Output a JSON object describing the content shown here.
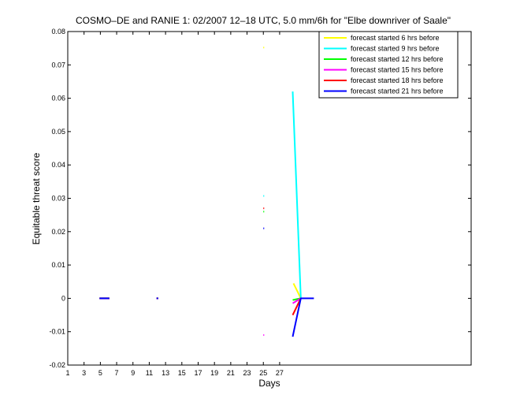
{
  "chart_data": {
    "type": "line",
    "title": "COSMO–DE and RANIE 1: 02/2007 12–18 UTC, 5.0 mm/6h for \"Elbe downriver of Saale\"",
    "xlabel": "Days",
    "ylabel": "Equitable threat score",
    "xlim": [
      1,
      50.5
    ],
    "ylim": [
      -0.02,
      0.08
    ],
    "x_ticks": [
      1,
      3,
      5,
      7,
      9,
      11,
      13,
      15,
      17,
      19,
      21,
      23,
      25,
      27
    ],
    "x_tick_labels": [
      "1",
      "3",
      "5",
      "7",
      "9",
      "11",
      "13",
      "15",
      "17",
      "19",
      "21",
      "23",
      "25",
      "27"
    ],
    "y_ticks": [
      -0.02,
      -0.01,
      0,
      0.01,
      0.02,
      0.03,
      0.04,
      0.05,
      0.06,
      0.07,
      0.08
    ],
    "y_tick_labels": [
      "-0.02",
      "-0.01",
      "0",
      "0.01",
      "0.02",
      "0.03",
      "0.04",
      "0.05",
      "0.06",
      "0.07",
      "0.08"
    ],
    "grid": false,
    "legend_position": "top-right",
    "series": [
      {
        "name": "forecast started 6 hrs before",
        "color": "#ffff00",
        "segments": [
          [
            [
              4.9,
              0
            ],
            [
              6.1,
              0
            ]
          ],
          [
            [
              11.9,
              0
            ],
            [
              12.1,
              0
            ]
          ],
          [
            [
              25,
              0.0752
            ],
            [
              25.1,
              0.0752
            ]
          ],
          [
            [
              28.7,
              0.0045
            ],
            [
              29.2,
              0.002
            ],
            [
              29.6,
              0
            ]
          ]
        ]
      },
      {
        "name": "forecast started 9 hrs before",
        "color": "#00ffff",
        "segments": [
          [
            [
              4.9,
              0
            ],
            [
              6.1,
              0
            ]
          ],
          [
            [
              11.9,
              0
            ],
            [
              12.1,
              0
            ]
          ],
          [
            [
              25,
              0.0307
            ],
            [
              25.1,
              0.0307
            ]
          ],
          [
            [
              28.6,
              0.062
            ],
            [
              29.6,
              0
            ]
          ]
        ]
      },
      {
        "name": "forecast started 12 hrs before",
        "color": "#00ff00",
        "segments": [
          [
            [
              4.9,
              0
            ],
            [
              6.1,
              0
            ]
          ],
          [
            [
              11.9,
              0
            ],
            [
              12.1,
              0
            ]
          ],
          [
            [
              25,
              0.026
            ],
            [
              25.1,
              0.026
            ]
          ],
          [
            [
              28.6,
              -0.0005
            ],
            [
              29.6,
              0
            ]
          ]
        ]
      },
      {
        "name": "forecast started 15 hrs before",
        "color": "#ff00ff",
        "segments": [
          [
            [
              4.9,
              0
            ],
            [
              6.1,
              0
            ]
          ],
          [
            [
              11.9,
              0
            ],
            [
              12.1,
              0
            ]
          ],
          [
            [
              25,
              -0.011
            ],
            [
              25.1,
              -0.011
            ]
          ],
          [
            [
              28.6,
              -0.0015
            ],
            [
              29.6,
              0
            ]
          ]
        ]
      },
      {
        "name": "forecast started 18 hrs before",
        "color": "#ff0000",
        "segments": [
          [
            [
              4.9,
              0
            ],
            [
              6.1,
              0
            ]
          ],
          [
            [
              11.9,
              0
            ],
            [
              12.1,
              0
            ]
          ],
          [
            [
              25,
              0.027
            ],
            [
              25.1,
              0.027
            ]
          ],
          [
            [
              28.6,
              -0.005
            ],
            [
              29.6,
              0
            ]
          ]
        ]
      },
      {
        "name": "forecast started 21 hrs before",
        "color": "#0000ff",
        "segments": [
          [
            [
              4.9,
              0
            ],
            [
              6.1,
              0
            ]
          ],
          [
            [
              11.9,
              0
            ],
            [
              12.1,
              0
            ]
          ],
          [
            [
              25,
              0.021
            ],
            [
              25.1,
              0.021
            ]
          ],
          [
            [
              28.6,
              -0.0115
            ],
            [
              29.6,
              0
            ],
            [
              31.2,
              0
            ]
          ]
        ]
      }
    ]
  }
}
